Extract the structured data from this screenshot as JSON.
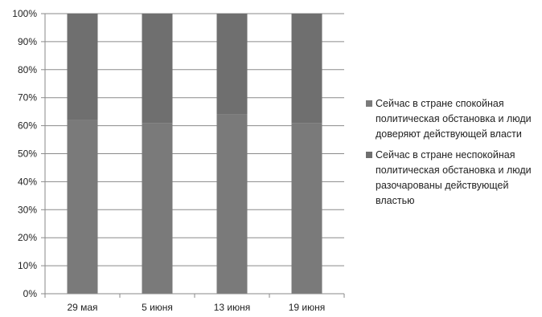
{
  "chart_data": {
    "type": "bar",
    "stacked": true,
    "categories": [
      "29 мая",
      "5 июня",
      "13 июня",
      "19 июня"
    ],
    "series": [
      {
        "name": "Сейчас в стране спокойная политическая обстановка и люди доверяют действующей власти",
        "color": "#7a7a7a",
        "values": [
          62,
          61,
          64,
          61
        ]
      },
      {
        "name": "Сейчас в стране неспокойная политическая обстановка и люди разочарованы действующей властью",
        "color": "#6f6f6f",
        "values": [
          38,
          39,
          36,
          39
        ]
      }
    ],
    "ylim": [
      0,
      100
    ],
    "yticks": [
      "0%",
      "10%",
      "20%",
      "30%",
      "40%",
      "50%",
      "60%",
      "70%",
      "80%",
      "90%",
      "100%"
    ],
    "grid": true,
    "legend_position": "right",
    "title": "",
    "xlabel": "",
    "ylabel": ""
  }
}
